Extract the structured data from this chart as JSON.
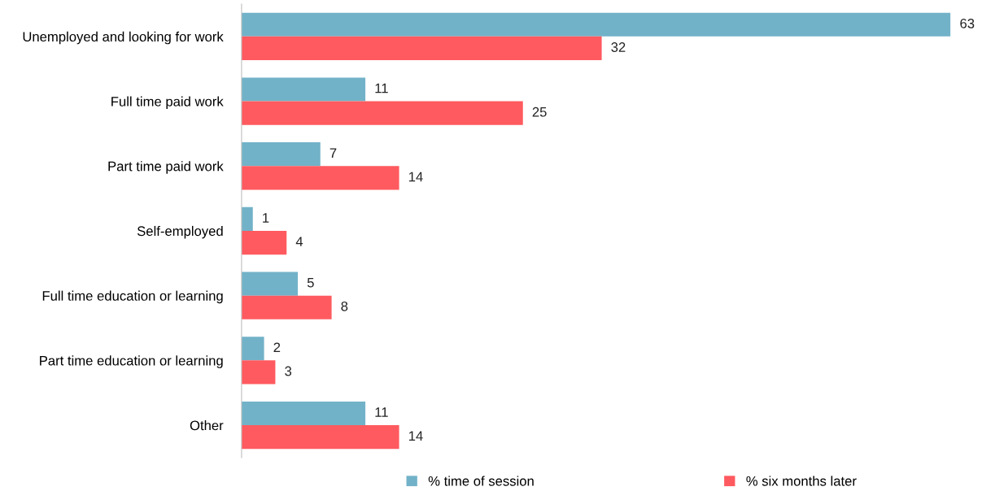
{
  "chart_data": {
    "type": "bar",
    "orientation": "horizontal",
    "categories": [
      "Unemployed and looking for work",
      "Full time paid work",
      "Part time paid work",
      "Self-employed",
      "Full time education or learning",
      "Part time education or learning",
      "Other"
    ],
    "series": [
      {
        "name": "% time of session",
        "color": "#72b2c8",
        "values": [
          63,
          11,
          7,
          1,
          5,
          2,
          11
        ]
      },
      {
        "name": "% six months later",
        "color": "#ff5a5f",
        "values": [
          32,
          25,
          14,
          4,
          8,
          3,
          14
        ]
      }
    ],
    "data_labels": true,
    "legend": "bottom",
    "grid": false,
    "tick_labels": "y"
  }
}
